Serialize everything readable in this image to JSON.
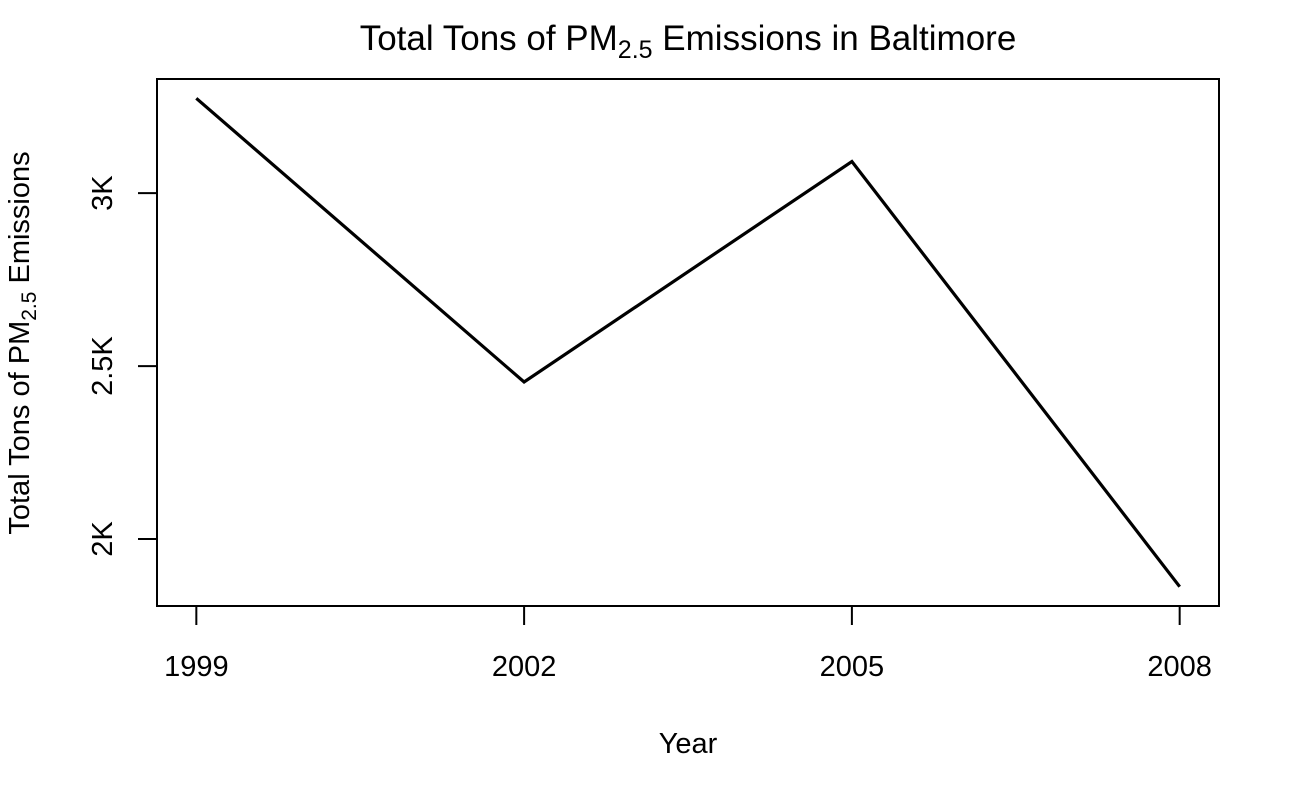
{
  "chart_data": {
    "type": "line",
    "title": {
      "pre": "Total Tons of PM",
      "sub": "2.5",
      "post": " Emissions in Baltimore"
    },
    "xlabel": "Year",
    "ylabel": {
      "pre": "Total Tons of PM",
      "sub": "2.5",
      "post": " Emissions"
    },
    "x": [
      1999,
      2002,
      2005,
      2008
    ],
    "series": [
      {
        "values": [
          3274.18,
          2453.92,
          3091.35,
          1862.28
        ],
        "color": "#000000"
      }
    ],
    "x_ticks": [
      {
        "value": 1999,
        "label": "1999"
      },
      {
        "value": 2002,
        "label": "2002"
      },
      {
        "value": 2005,
        "label": "2005"
      },
      {
        "value": 2008,
        "label": "2008"
      }
    ],
    "y_ticks": [
      {
        "value": 2000,
        "label": "2K"
      },
      {
        "value": 2500,
        "label": "2.5K"
      },
      {
        "value": 3000,
        "label": "3K"
      }
    ],
    "xlim": [
      1998.64,
      2008.36
    ],
    "ylim": [
      1806.5,
      3329.9
    ],
    "grid": false
  }
}
